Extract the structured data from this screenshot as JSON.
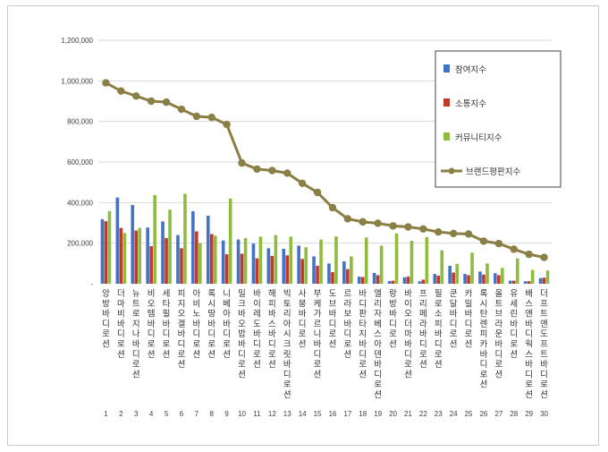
{
  "chart_data": {
    "type": "bar",
    "categories": [
      "앙방바디로션",
      "더마비바디로션",
      "뉴트로지나바디로션",
      "비오템바디로션",
      "세타필바디로션",
      "피지오겔바디로션",
      "아비노바디로션",
      "록시땅바디로션",
      "니베아바디로션",
      "밀크바오밥바디로션",
      "바이레도바디로션",
      "해피바스바디로션",
      "빅토리아시크릿바디로션",
      "사봉바디로션",
      "부케가르니바디로션",
      "도브바디로션",
      "르라보바디로션",
      "바디판타지바디로션",
      "엘리자베스아덴바디로션",
      "랑방바디로션",
      "바이오더마바디로션",
      "프리메라바디로션",
      "필로소피바디로션",
      "쿤달바디로션",
      "카밀바디로션",
      "록시탄렌피카바디로션",
      "올트브라운바디로션",
      "유세린바디로션",
      "배스앤바디웍스바디로션",
      "더프트앤도프트바디로션"
    ],
    "index_labels": [
      "1",
      "2",
      "3",
      "4",
      "5",
      "6",
      "7",
      "8",
      "9",
      "10",
      "11",
      "12",
      "13",
      "14",
      "15",
      "16",
      "17",
      "18",
      "19",
      "20",
      "21",
      "22",
      "23",
      "24",
      "25",
      "26",
      "27",
      "28",
      "29",
      "30"
    ],
    "series": [
      {
        "name": "참여지수",
        "kind": "bar",
        "color": "#4472c4",
        "values": [
          318000,
          425000,
          388000,
          277000,
          307000,
          240000,
          357000,
          335000,
          213000,
          218000,
          198000,
          175000,
          172000,
          188000,
          135000,
          100000,
          110000,
          35000,
          53000,
          13000,
          32000,
          12000,
          48000,
          88000,
          48000,
          60000,
          52000,
          15000,
          12000,
          28000
        ]
      },
      {
        "name": "소통지수",
        "kind": "bar",
        "color": "#c0392b",
        "values": [
          308000,
          275000,
          262000,
          185000,
          225000,
          175000,
          258000,
          245000,
          145000,
          148000,
          125000,
          137000,
          140000,
          122000,
          88000,
          57000,
          72000,
          33000,
          42000,
          15000,
          35000,
          20000,
          40000,
          55000,
          42000,
          45000,
          42000,
          15000,
          12000,
          30000
        ]
      },
      {
        "name": "커뮤니티지수",
        "kind": "bar",
        "color": "#8fbc3f",
        "values": [
          358000,
          250000,
          275000,
          437000,
          365000,
          443000,
          200000,
          237000,
          420000,
          225000,
          232000,
          240000,
          232000,
          180000,
          218000,
          233000,
          135000,
          228000,
          188000,
          248000,
          212000,
          230000,
          165000,
          98000,
          153000,
          100000,
          78000,
          125000,
          68000,
          65000
        ]
      },
      {
        "name": "브랜드평판지수",
        "kind": "line",
        "color": "#8a7f45",
        "values": [
          990000,
          950000,
          925000,
          900000,
          895000,
          860000,
          825000,
          820000,
          785000,
          595000,
          565000,
          558000,
          545000,
          495000,
          450000,
          375000,
          320000,
          305000,
          298000,
          285000,
          280000,
          270000,
          255000,
          248000,
          245000,
          210000,
          198000,
          170000,
          145000,
          130000
        ]
      }
    ],
    "ylim": [
      0,
      1200000
    ],
    "yticks": [
      0,
      200000,
      400000,
      600000,
      800000,
      1000000,
      1200000
    ],
    "ytick_labels": [
      "-",
      "200,000",
      "400,000",
      "600,000",
      "800,000",
      "1,000,000",
      "1,200,000"
    ],
    "grid": true,
    "legend_position": "top-right",
    "title": "",
    "xlabel": "",
    "ylabel": ""
  }
}
